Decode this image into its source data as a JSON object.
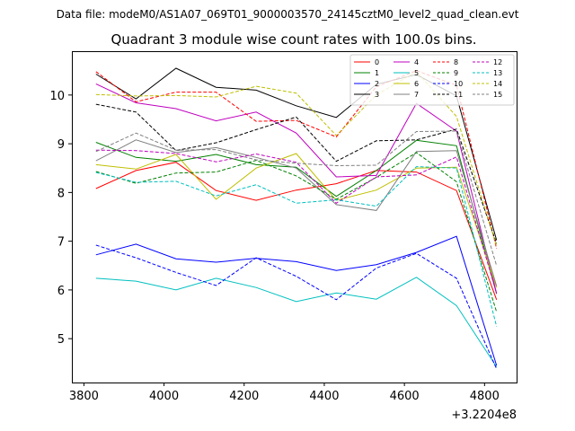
{
  "chart_data": {
    "type": "line",
    "header_text": "Data file: modeM0/AS1A07_069T01_9000003570_24145cztM0_level2_quad_clean.evt",
    "title": "Quadrant 3 module wise count rates with 100.0s bins.",
    "xlabel": "",
    "ylabel": "",
    "x_offset_label": "+3.2204e8",
    "xlim": [
      3770,
      4880
    ],
    "ylim": [
      4.1,
      10.9
    ],
    "xticks": [
      3800,
      4000,
      4200,
      4400,
      4600,
      4800
    ],
    "yticks": [
      5,
      6,
      7,
      8,
      9,
      10
    ],
    "grid": false,
    "legend_position": "top-right",
    "x": [
      3830,
      3930,
      4030,
      4130,
      4230,
      4330,
      4430,
      4530,
      4630,
      4730,
      4830
    ],
    "series": [
      {
        "name": "0",
        "color": "#ff0000",
        "dash": false,
        "values": [
          8.08,
          8.45,
          8.62,
          8.04,
          7.84,
          8.05,
          8.18,
          8.45,
          8.42,
          8.04,
          5.8
        ]
      },
      {
        "name": "1",
        "color": "#008000",
        "dash": false,
        "values": [
          9.03,
          8.72,
          8.64,
          8.78,
          8.57,
          8.52,
          7.92,
          8.45,
          9.07,
          8.96,
          5.92
        ]
      },
      {
        "name": "2",
        "color": "#0000ff",
        "dash": false,
        "values": [
          6.72,
          6.94,
          6.64,
          6.57,
          6.65,
          6.58,
          6.4,
          6.52,
          6.77,
          7.1,
          4.45
        ]
      },
      {
        "name": "3",
        "color": "#000000",
        "dash": false,
        "values": [
          10.43,
          9.92,
          10.55,
          10.16,
          10.1,
          9.78,
          9.54,
          10.22,
          10.42,
          9.98,
          7.02
        ]
      },
      {
        "name": "4",
        "color": "#bf00bf",
        "dash": false,
        "values": [
          10.23,
          9.84,
          9.72,
          9.47,
          9.65,
          9.22,
          8.32,
          8.35,
          9.83,
          9.26,
          5.93
        ]
      },
      {
        "name": "5",
        "color": "#00bfbf",
        "dash": false,
        "values": [
          6.24,
          6.18,
          6.0,
          6.24,
          6.05,
          5.76,
          5.94,
          5.81,
          6.26,
          5.68,
          4.42
        ]
      },
      {
        "name": "6",
        "color": "#bfbf00",
        "dash": false,
        "values": [
          8.57,
          8.48,
          8.78,
          7.86,
          8.5,
          8.8,
          7.84,
          8.05,
          8.5,
          8.52,
          6.05
        ]
      },
      {
        "name": "7",
        "color": "#808080",
        "dash": false,
        "values": [
          8.65,
          9.08,
          8.82,
          8.92,
          8.72,
          8.5,
          7.75,
          7.63,
          8.84,
          8.86,
          6.08
        ]
      },
      {
        "name": "8",
        "color": "#ff0000",
        "dash": true,
        "values": [
          10.48,
          9.86,
          10.06,
          10.06,
          9.46,
          9.48,
          9.14,
          10.17,
          10.5,
          10.2,
          6.85
        ]
      },
      {
        "name": "9",
        "color": "#008000",
        "dash": true,
        "values": [
          8.43,
          8.19,
          8.4,
          8.42,
          8.66,
          8.34,
          7.86,
          8.31,
          8.82,
          8.22,
          5.55
        ]
      },
      {
        "name": "10",
        "color": "#0000ff",
        "dash": true,
        "values": [
          6.92,
          6.66,
          6.36,
          6.09,
          6.66,
          6.28,
          5.8,
          6.45,
          6.75,
          6.24,
          4.38
        ]
      },
      {
        "name": "11",
        "color": "#000000",
        "dash": true,
        "values": [
          9.81,
          9.65,
          8.86,
          9.02,
          9.29,
          9.55,
          8.64,
          9.06,
          9.08,
          9.3,
          6.95
        ]
      },
      {
        "name": "12",
        "color": "#bf00bf",
        "dash": true,
        "values": [
          8.87,
          8.86,
          8.8,
          8.63,
          8.79,
          8.62,
          7.78,
          8.32,
          8.36,
          8.73,
          5.93
        ]
      },
      {
        "name": "13",
        "color": "#00bfbf",
        "dash": true,
        "values": [
          8.41,
          8.21,
          8.23,
          7.93,
          8.16,
          7.78,
          7.85,
          7.72,
          8.53,
          8.5,
          5.25
        ]
      },
      {
        "name": "14",
        "color": "#bfbf00",
        "dash": true,
        "values": [
          10.01,
          9.98,
          9.99,
          9.96,
          10.18,
          10.04,
          9.17,
          10.0,
          10.48,
          9.56,
          6.9
        ]
      },
      {
        "name": "15",
        "color": "#808080",
        "dash": true,
        "values": [
          8.84,
          9.22,
          8.87,
          8.88,
          8.67,
          8.6,
          8.55,
          8.56,
          9.25,
          9.26,
          6.5
        ]
      }
    ]
  }
}
